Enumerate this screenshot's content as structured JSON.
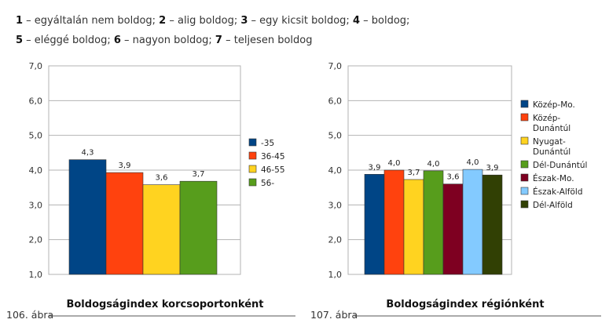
{
  "header": {
    "lines": [
      [
        {
          "num": "1",
          "text": " – egyáltalán nem boldog; "
        },
        {
          "num": "2",
          "text": " – alig boldog; "
        },
        {
          "num": "3",
          "text": " – egy kicsit boldog; "
        },
        {
          "num": "4",
          "text": " – boldog;"
        }
      ],
      [
        {
          "num": "5",
          "text": " – eléggé boldog; "
        },
        {
          "num": "6",
          "text": " – nagyon boldog; "
        },
        {
          "num": "7",
          "text": " – teljesen boldog"
        }
      ]
    ]
  },
  "chart_data": [
    {
      "type": "bar",
      "figure_label": "106. ábra",
      "title": "Boldogságindex korcsoportonként",
      "ylim": [
        1.0,
        7.0
      ],
      "yticks": [
        "1,0",
        "2,0",
        "3,0",
        "4,0",
        "5,0",
        "6,0",
        "7,0"
      ],
      "grid": true,
      "legend_position": "right",
      "series": [
        {
          "name": "-35",
          "value": 4.3,
          "label": "4,3",
          "color": "#004586"
        },
        {
          "name": "36-45",
          "value": 3.93,
          "label": "3,9",
          "color": "#ff420e"
        },
        {
          "name": "46-55",
          "value": 3.58,
          "label": "3,6",
          "color": "#ffd320"
        },
        {
          "name": "56-",
          "value": 3.68,
          "label": "3,7",
          "color": "#579d1c"
        }
      ]
    },
    {
      "type": "bar",
      "figure_label": "107. ábra",
      "title": "Boldogságindex régiónként",
      "ylim": [
        1.0,
        7.0
      ],
      "yticks": [
        "1,0",
        "2,0",
        "3,0",
        "4,0",
        "5,0",
        "6,0",
        "7,0"
      ],
      "grid": true,
      "legend_position": "right",
      "series": [
        {
          "name": [
            "Közép-Mo."
          ],
          "value": 3.88,
          "label": "3,9",
          "color": "#004586"
        },
        {
          "name": [
            "Közép-",
            "Dunántúl"
          ],
          "value": 4.0,
          "label": "4,0",
          "color": "#ff420e"
        },
        {
          "name": [
            "Nyugat-",
            "Dunántúl"
          ],
          "value": 3.73,
          "label": "3,7",
          "color": "#ffd320"
        },
        {
          "name": [
            "Dél-Dunántúl"
          ],
          "value": 3.98,
          "label": "4,0",
          "color": "#579d1c"
        },
        {
          "name": [
            "Észak-Mo."
          ],
          "value": 3.6,
          "label": "3,6",
          "color": "#7e0021"
        },
        {
          "name": [
            "Észak-Alföld"
          ],
          "value": 4.02,
          "label": "4,0",
          "color": "#83caff"
        },
        {
          "name": [
            "Dél-Alföld"
          ],
          "value": 3.86,
          "label": "3,9",
          "color": "#314004"
        }
      ]
    }
  ]
}
